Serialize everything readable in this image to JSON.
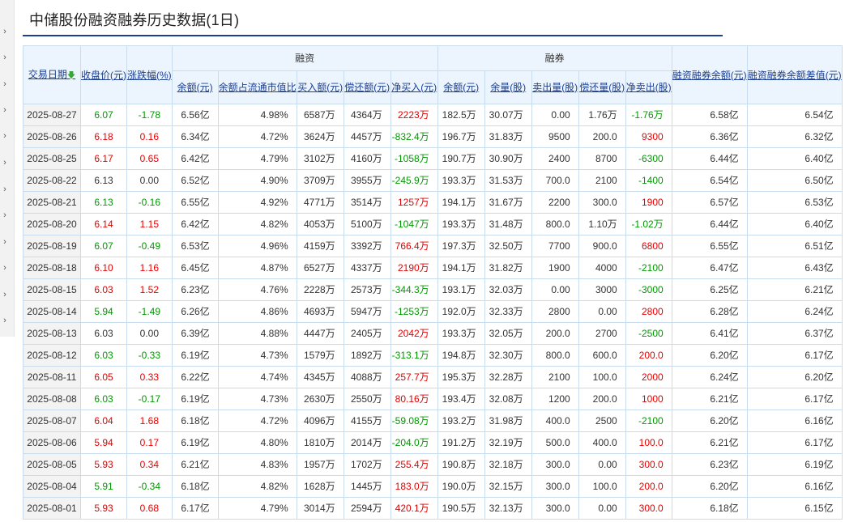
{
  "page": {
    "title": "中储股份融资融券历史数据(1日)"
  },
  "table": {
    "headers": {
      "date": "交易日期",
      "close": "收盘价(元)",
      "change": "涨跌幅(%)",
      "group_rz": "融资",
      "group_rq": "融券",
      "rzrq_balance": "融资融券余额(元)",
      "rzrq_diff": "融资融券余额差值(元)",
      "rz": [
        "余额(元)",
        "余额占流通市值比",
        "买入额(元)",
        "偿还额(元)",
        "净买入(元)"
      ],
      "rq": [
        "余额(元)",
        "余量(股)",
        "卖出量(股)",
        "偿还量(股)",
        "净卖出(股)"
      ]
    },
    "rows": [
      {
        "date": "2025-08-27",
        "close": "6.07",
        "chg": "-1.78",
        "rz_bal": "6.56亿",
        "rz_ratio": "4.98%",
        "rz_buy": "6587万",
        "rz_repay": "4364万",
        "rz_net": "2223万",
        "rq_bal": "182.5万",
        "rq_vol": "30.07万",
        "rq_sell": "0.00",
        "rq_repay": "1.76万",
        "rq_net": "-1.76万",
        "total": "6.58亿",
        "diff": "6.54亿"
      },
      {
        "date": "2025-08-26",
        "close": "6.18",
        "chg": "0.16",
        "rz_bal": "6.34亿",
        "rz_ratio": "4.72%",
        "rz_buy": "3624万",
        "rz_repay": "4457万",
        "rz_net": "-832.4万",
        "rq_bal": "196.7万",
        "rq_vol": "31.83万",
        "rq_sell": "9500",
        "rq_repay": "200.0",
        "rq_net": "9300",
        "total": "6.36亿",
        "diff": "6.32亿"
      },
      {
        "date": "2025-08-25",
        "close": "6.17",
        "chg": "0.65",
        "rz_bal": "6.42亿",
        "rz_ratio": "4.79%",
        "rz_buy": "3102万",
        "rz_repay": "4160万",
        "rz_net": "-1058万",
        "rq_bal": "190.7万",
        "rq_vol": "30.90万",
        "rq_sell": "2400",
        "rq_repay": "8700",
        "rq_net": "-6300",
        "total": "6.44亿",
        "diff": "6.40亿"
      },
      {
        "date": "2025-08-22",
        "close": "6.13",
        "chg": "0.00",
        "rz_bal": "6.52亿",
        "rz_ratio": "4.90%",
        "rz_buy": "3709万",
        "rz_repay": "3955万",
        "rz_net": "-245.9万",
        "rq_bal": "193.3万",
        "rq_vol": "31.53万",
        "rq_sell": "700.0",
        "rq_repay": "2100",
        "rq_net": "-1400",
        "total": "6.54亿",
        "diff": "6.50亿"
      },
      {
        "date": "2025-08-21",
        "close": "6.13",
        "chg": "-0.16",
        "rz_bal": "6.55亿",
        "rz_ratio": "4.92%",
        "rz_buy": "4771万",
        "rz_repay": "3514万",
        "rz_net": "1257万",
        "rq_bal": "194.1万",
        "rq_vol": "31.67万",
        "rq_sell": "2200",
        "rq_repay": "300.0",
        "rq_net": "1900",
        "total": "6.57亿",
        "diff": "6.53亿"
      },
      {
        "date": "2025-08-20",
        "close": "6.14",
        "chg": "1.15",
        "rz_bal": "6.42亿",
        "rz_ratio": "4.82%",
        "rz_buy": "4053万",
        "rz_repay": "5100万",
        "rz_net": "-1047万",
        "rq_bal": "193.3万",
        "rq_vol": "31.48万",
        "rq_sell": "800.0",
        "rq_repay": "1.10万",
        "rq_net": "-1.02万",
        "total": "6.44亿",
        "diff": "6.40亿"
      },
      {
        "date": "2025-08-19",
        "close": "6.07",
        "chg": "-0.49",
        "rz_bal": "6.53亿",
        "rz_ratio": "4.96%",
        "rz_buy": "4159万",
        "rz_repay": "3392万",
        "rz_net": "766.4万",
        "rq_bal": "197.3万",
        "rq_vol": "32.50万",
        "rq_sell": "7700",
        "rq_repay": "900.0",
        "rq_net": "6800",
        "total": "6.55亿",
        "diff": "6.51亿"
      },
      {
        "date": "2025-08-18",
        "close": "6.10",
        "chg": "1.16",
        "rz_bal": "6.45亿",
        "rz_ratio": "4.87%",
        "rz_buy": "6527万",
        "rz_repay": "4337万",
        "rz_net": "2190万",
        "rq_bal": "194.1万",
        "rq_vol": "31.82万",
        "rq_sell": "1900",
        "rq_repay": "4000",
        "rq_net": "-2100",
        "total": "6.47亿",
        "diff": "6.43亿"
      },
      {
        "date": "2025-08-15",
        "close": "6.03",
        "chg": "1.52",
        "rz_bal": "6.23亿",
        "rz_ratio": "4.76%",
        "rz_buy": "2228万",
        "rz_repay": "2573万",
        "rz_net": "-344.3万",
        "rq_bal": "193.1万",
        "rq_vol": "32.03万",
        "rq_sell": "0.00",
        "rq_repay": "3000",
        "rq_net": "-3000",
        "total": "6.25亿",
        "diff": "6.21亿"
      },
      {
        "date": "2025-08-14",
        "close": "5.94",
        "chg": "-1.49",
        "rz_bal": "6.26亿",
        "rz_ratio": "4.86%",
        "rz_buy": "4693万",
        "rz_repay": "5947万",
        "rz_net": "-1253万",
        "rq_bal": "192.0万",
        "rq_vol": "32.33万",
        "rq_sell": "2800",
        "rq_repay": "0.00",
        "rq_net": "2800",
        "total": "6.28亿",
        "diff": "6.24亿"
      },
      {
        "date": "2025-08-13",
        "close": "6.03",
        "chg": "0.00",
        "rz_bal": "6.39亿",
        "rz_ratio": "4.88%",
        "rz_buy": "4447万",
        "rz_repay": "2405万",
        "rz_net": "2042万",
        "rq_bal": "193.3万",
        "rq_vol": "32.05万",
        "rq_sell": "200.0",
        "rq_repay": "2700",
        "rq_net": "-2500",
        "total": "6.41亿",
        "diff": "6.37亿"
      },
      {
        "date": "2025-08-12",
        "close": "6.03",
        "chg": "-0.33",
        "rz_bal": "6.19亿",
        "rz_ratio": "4.73%",
        "rz_buy": "1579万",
        "rz_repay": "1892万",
        "rz_net": "-313.1万",
        "rq_bal": "194.8万",
        "rq_vol": "32.30万",
        "rq_sell": "800.0",
        "rq_repay": "600.0",
        "rq_net": "200.0",
        "total": "6.20亿",
        "diff": "6.17亿"
      },
      {
        "date": "2025-08-11",
        "close": "6.05",
        "chg": "0.33",
        "rz_bal": "6.22亿",
        "rz_ratio": "4.74%",
        "rz_buy": "4345万",
        "rz_repay": "4088万",
        "rz_net": "257.7万",
        "rq_bal": "195.3万",
        "rq_vol": "32.28万",
        "rq_sell": "2100",
        "rq_repay": "100.0",
        "rq_net": "2000",
        "total": "6.24亿",
        "diff": "6.20亿"
      },
      {
        "date": "2025-08-08",
        "close": "6.03",
        "chg": "-0.17",
        "rz_bal": "6.19亿",
        "rz_ratio": "4.73%",
        "rz_buy": "2630万",
        "rz_repay": "2550万",
        "rz_net": "80.16万",
        "rq_bal": "193.4万",
        "rq_vol": "32.08万",
        "rq_sell": "1200",
        "rq_repay": "200.0",
        "rq_net": "1000",
        "total": "6.21亿",
        "diff": "6.17亿"
      },
      {
        "date": "2025-08-07",
        "close": "6.04",
        "chg": "1.68",
        "rz_bal": "6.18亿",
        "rz_ratio": "4.72%",
        "rz_buy": "4096万",
        "rz_repay": "4155万",
        "rz_net": "-59.08万",
        "rq_bal": "193.2万",
        "rq_vol": "31.98万",
        "rq_sell": "400.0",
        "rq_repay": "2500",
        "rq_net": "-2100",
        "total": "6.20亿",
        "diff": "6.16亿"
      },
      {
        "date": "2025-08-06",
        "close": "5.94",
        "chg": "0.17",
        "rz_bal": "6.19亿",
        "rz_ratio": "4.80%",
        "rz_buy": "1810万",
        "rz_repay": "2014万",
        "rz_net": "-204.0万",
        "rq_bal": "191.2万",
        "rq_vol": "32.19万",
        "rq_sell": "500.0",
        "rq_repay": "400.0",
        "rq_net": "100.0",
        "total": "6.21亿",
        "diff": "6.17亿"
      },
      {
        "date": "2025-08-05",
        "close": "5.93",
        "chg": "0.34",
        "rz_bal": "6.21亿",
        "rz_ratio": "4.83%",
        "rz_buy": "1957万",
        "rz_repay": "1702万",
        "rz_net": "255.4万",
        "rq_bal": "190.8万",
        "rq_vol": "32.18万",
        "rq_sell": "300.0",
        "rq_repay": "0.00",
        "rq_net": "300.0",
        "total": "6.23亿",
        "diff": "6.19亿"
      },
      {
        "date": "2025-08-04",
        "close": "5.91",
        "chg": "-0.34",
        "rz_bal": "6.18亿",
        "rz_ratio": "4.82%",
        "rz_buy": "1628万",
        "rz_repay": "1445万",
        "rz_net": "183.0万",
        "rq_bal": "190.0万",
        "rq_vol": "32.15万",
        "rq_sell": "300.0",
        "rq_repay": "100.0",
        "rq_net": "200.0",
        "total": "6.20亿",
        "diff": "6.16亿"
      },
      {
        "date": "2025-08-01",
        "close": "5.93",
        "chg": "0.68",
        "rz_bal": "6.17亿",
        "rz_ratio": "4.79%",
        "rz_buy": "3014万",
        "rz_repay": "2594万",
        "rz_net": "420.1万",
        "rq_bal": "190.5万",
        "rq_vol": "32.13万",
        "rq_sell": "300.0",
        "rq_repay": "0.00",
        "rq_net": "300.0",
        "total": "6.18亿",
        "diff": "6.15亿"
      }
    ]
  },
  "colors": {
    "up": "#e60000",
    "down": "#009900",
    "header_bg": "#ecf4fd",
    "title_line": "#1c3f91"
  }
}
